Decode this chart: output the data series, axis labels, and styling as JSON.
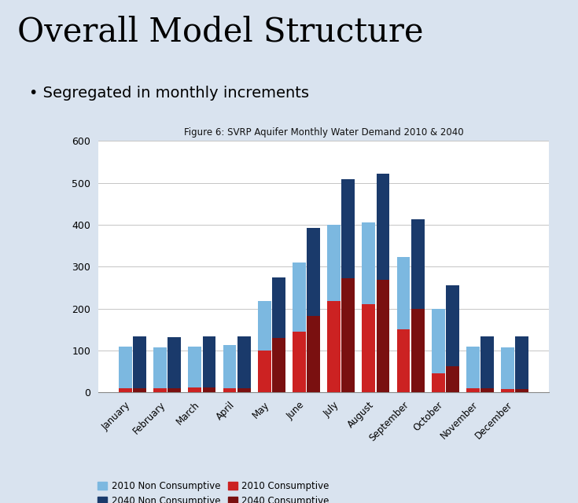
{
  "title": "Figure 6: SVRP Aquifer Monthly Water Demand 2010 & 2040",
  "slide_title": "Overall Model Structure",
  "bullet": "Segregated in monthly increments",
  "months": [
    "January",
    "February",
    "March",
    "April",
    "May",
    "June",
    "July",
    "August",
    "September",
    "October",
    "November",
    "December"
  ],
  "nc2010": [
    110,
    108,
    110,
    112,
    218,
    310,
    400,
    405,
    323,
    200,
    110,
    108
  ],
  "nc2040": [
    133,
    132,
    133,
    133,
    275,
    393,
    508,
    522,
    412,
    255,
    133,
    133
  ],
  "c2010": [
    10,
    10,
    12,
    10,
    100,
    145,
    218,
    210,
    150,
    45,
    10,
    8
  ],
  "c2040": [
    10,
    10,
    12,
    10,
    130,
    183,
    272,
    268,
    200,
    62,
    10,
    8
  ],
  "color_nc2010": "#7cb8e0",
  "color_nc2040": "#1a3a6b",
  "color_c2010": "#cc2222",
  "color_c2040": "#7a1010",
  "ylim": [
    0,
    600
  ],
  "yticks": [
    0,
    100,
    200,
    300,
    400,
    500,
    600
  ],
  "slide_bg": "#d9e3ef",
  "chart_bg": "#ffffff",
  "title_color": "#000000",
  "bullet_color": "#000000"
}
